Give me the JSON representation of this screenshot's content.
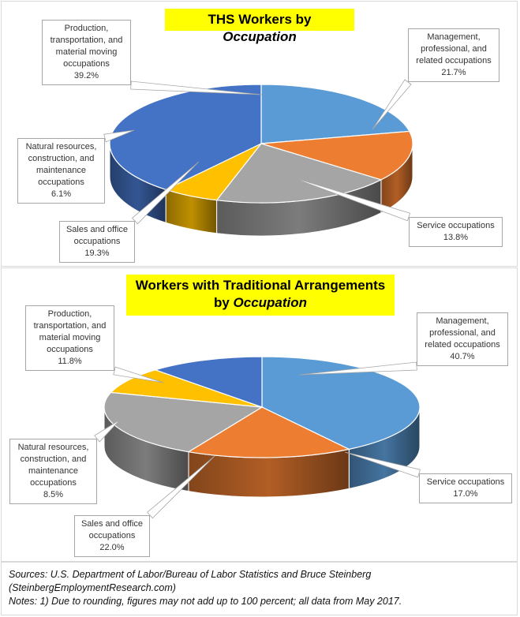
{
  "chart_data": [
    {
      "type": "pie",
      "title": "THS Workers by Occupation",
      "title_plain": "THS Workers by ",
      "title_italic": "Occupation",
      "categories": [
        "Management, professional, and related occupations",
        "Service occupations",
        "Sales and office occupations",
        "Natural resources, construction, and maintenance occupations",
        "Production, transportation, and material moving occupations"
      ],
      "values": [
        21.7,
        13.8,
        19.3,
        6.1,
        39.2
      ],
      "colors": [
        "#5b9bd5",
        "#ed7d31",
        "#a5a5a5",
        "#ffc000",
        "#4472c4"
      ],
      "labels": [
        {
          "lines": [
            "Management,",
            "professional, and",
            "related occupations",
            "21.7%"
          ]
        },
        {
          "lines": [
            "Service occupations",
            "13.8%"
          ]
        },
        {
          "lines": [
            "Sales and office",
            "occupations",
            "19.3%"
          ]
        },
        {
          "lines": [
            "Natural resources,",
            "construction, and",
            "maintenance",
            "occupations",
            "6.1%"
          ]
        },
        {
          "lines": [
            "Production,",
            "transportation, and",
            "material moving",
            "occupations",
            "39.2%"
          ]
        }
      ]
    },
    {
      "type": "pie",
      "title": "Workers with Traditional Arrangements by Occupation",
      "title_line1": "Workers with Traditional Arrangements",
      "title_plain": "by ",
      "title_italic": "Occupation",
      "categories": [
        "Management, professional, and related occupations",
        "Service occupations",
        "Sales and office occupations",
        "Natural resources, construction, and maintenance occupations",
        "Production, transportation, and material moving occupations"
      ],
      "values": [
        40.7,
        17.0,
        22.0,
        8.5,
        11.8
      ],
      "colors": [
        "#5b9bd5",
        "#ed7d31",
        "#a5a5a5",
        "#ffc000",
        "#4472c4"
      ],
      "labels": [
        {
          "lines": [
            "Management,",
            "professional, and",
            "related occupations",
            "40.7%"
          ]
        },
        {
          "lines": [
            "Service occupations",
            "17.0%"
          ]
        },
        {
          "lines": [
            "Sales and office",
            "occupations",
            "22.0%"
          ]
        },
        {
          "lines": [
            "Natural resources,",
            "construction, and",
            "maintenance",
            "occupations",
            "8.5%"
          ]
        },
        {
          "lines": [
            "Production,",
            "transportation, and",
            "material moving",
            "occupations",
            "11.8%"
          ]
        }
      ]
    }
  ],
  "footer": {
    "sources": "Sources: U.S. Department of Labor/Bureau of Labor Statistics and Bruce Steinberg",
    "website": "(SteinbergEmploymentResearch.com)",
    "notes": "Notes: 1) Due to rounding, figures may not add up to 100 percent; all data from May 2017."
  }
}
